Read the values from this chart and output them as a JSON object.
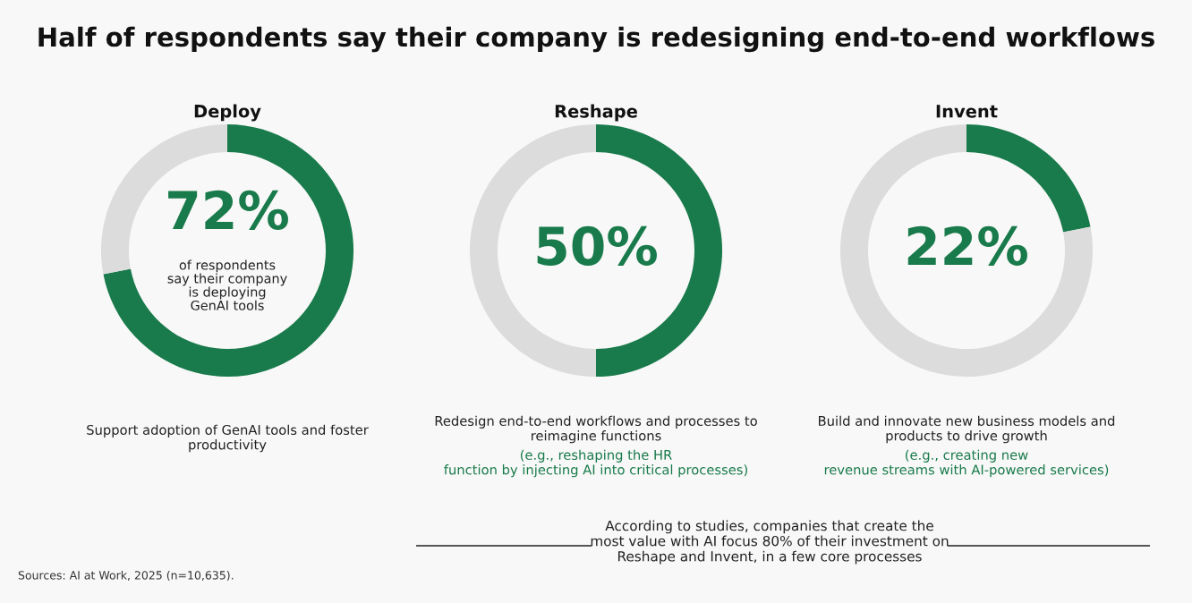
{
  "chart_data": [
    {
      "type": "donut",
      "title": "Deploy",
      "categories": [
        null,
        null
      ],
      "values": [
        72,
        28
      ],
      "colors": [
        "#197a4b",
        "#dcdcdc"
      ],
      "value_labels": [
        "72%",
        null
      ],
      "annotations": [
        "of respondents\nsay their company\nis deploying\nGenAI tools",
        "Support adoption of GenAI tools and foster\nproductivity",
        "Half of respondents say their company is redesigning end-to-end workflows",
        "Sources: AI at Work, 2025 (n=10,635)."
      ]
    },
    {
      "type": "donut",
      "title": "Reshape",
      "categories": [
        null,
        null
      ],
      "values": [
        50,
        50
      ],
      "colors": [
        "#197a4b",
        "#dcdcdc"
      ],
      "value_labels": [
        "50%",
        null
      ],
      "annotations": [
        "Redesign end-to-end workflows and processes to\nreimagine functions",
        "(e.g., reshaping the HR\nfunction by injecting AI into critical processes)",
        "According to studies, companies that create the\nmost value with AI focus 80% of their investment on\nReshape and Invent, in a few core processes"
      ]
    },
    {
      "type": "donut",
      "title": "Invent",
      "categories": [
        null,
        null
      ],
      "values": [
        22,
        78
      ],
      "colors": [
        "#197a4b",
        "#dcdcdc"
      ],
      "value_labels": [
        "22%",
        null
      ],
      "annotations": [
        "Build and innovate new business models and\nproducts to drive growth",
        "(e.g., creating new\nrevenue streams with AI-powered services)"
      ]
    }
  ]
}
